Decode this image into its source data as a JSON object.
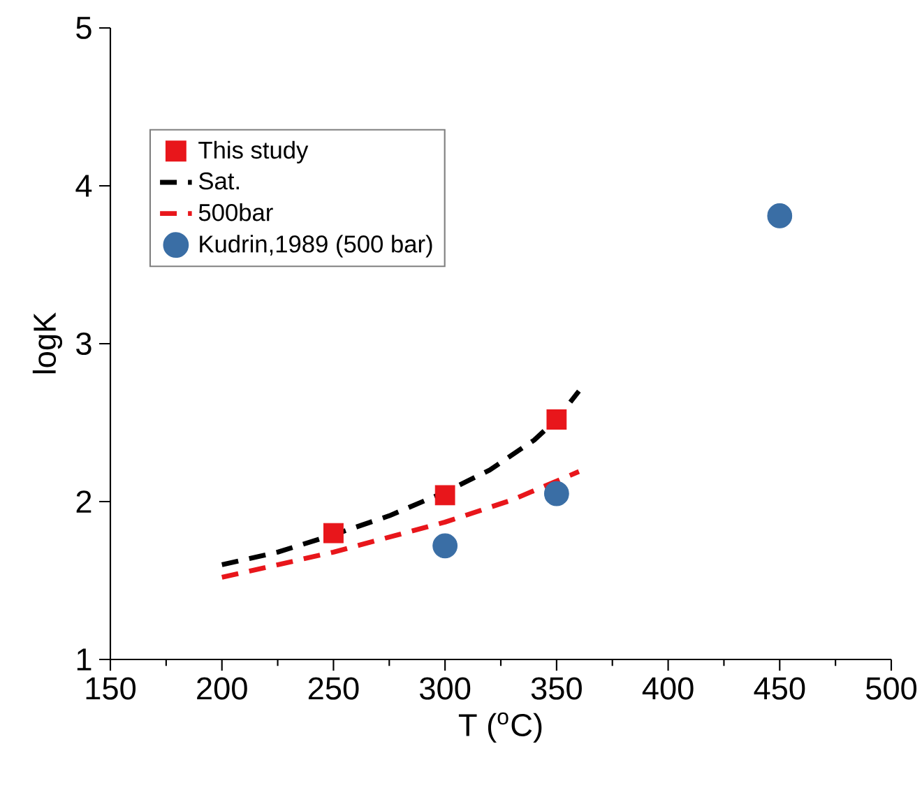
{
  "chart_data": {
    "type": "scatter",
    "xlabel": "T ($^{o}$C)",
    "ylabel": "logK",
    "xlim": [
      150,
      500
    ],
    "ylim": [
      1,
      5
    ],
    "xticks": [
      150,
      200,
      250,
      300,
      350,
      400,
      450,
      500
    ],
    "yticks": [
      1,
      2,
      3,
      4,
      5
    ],
    "legend": "top left",
    "grid": false,
    "series": [
      {
        "name": "This study",
        "marker": "square",
        "color": "#e8161b",
        "x": [
          250,
          300,
          350
        ],
        "values": [
          1.8,
          2.04,
          2.52
        ]
      },
      {
        "name": "Sat.",
        "type": "line",
        "line_style": "dashed",
        "marker": "none",
        "color": "#000000",
        "x": [
          200,
          225,
          250,
          275,
          300,
          320,
          340,
          350,
          360
        ],
        "values": [
          1.6,
          1.68,
          1.79,
          1.91,
          2.06,
          2.2,
          2.39,
          2.52,
          2.7
        ]
      },
      {
        "name": "500bar",
        "type": "line",
        "line_style": "dashed",
        "marker": "none",
        "color": "#e8161b",
        "x": [
          200,
          250,
          300,
          330,
          360
        ],
        "values": [
          1.52,
          1.68,
          1.87,
          2.01,
          2.19
        ]
      },
      {
        "name": "Kudrin,1989 (500 bar)",
        "marker": "circle",
        "color": "#3a6ea5",
        "x": [
          300,
          350,
          450
        ],
        "values": [
          1.72,
          2.05,
          3.81
        ]
      }
    ]
  }
}
